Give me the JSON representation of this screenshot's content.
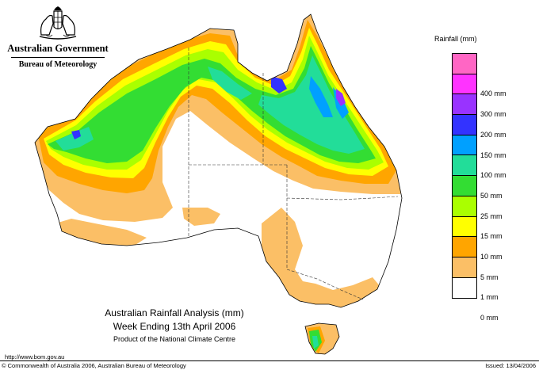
{
  "branding": {
    "government": "Australian Government",
    "bureau": "Bureau of Meteorology"
  },
  "legend": {
    "title": "Rainfall (mm)",
    "items": [
      {
        "label": "",
        "color": "#ff66c4"
      },
      {
        "label": "400 mm",
        "color": "#ff33ff"
      },
      {
        "label": "300 mm",
        "color": "#9933ff"
      },
      {
        "label": "200 mm",
        "color": "#3333ff"
      },
      {
        "label": "150 mm",
        "color": "#00a0ff"
      },
      {
        "label": "100 mm",
        "color": "#22dd99"
      },
      {
        "label": "50 mm",
        "color": "#33dd33"
      },
      {
        "label": "25 mm",
        "color": "#aaff00"
      },
      {
        "label": "15 mm",
        "color": "#ffff00"
      },
      {
        "label": "10 mm",
        "color": "#ffa500"
      },
      {
        "label": "5 mm",
        "color": "#fbbf66"
      },
      {
        "label": "1 mm",
        "color": "#ffffff"
      },
      {
        "label": "0 mm",
        "color": ""
      }
    ]
  },
  "map_title": {
    "line1": "Australian Rainfall Analysis (mm)",
    "line2": "Week Ending 13th April 2006",
    "line3": "Product of the National Climate Centre"
  },
  "footer": {
    "url": "http://www.bom.gov.au",
    "copyright": "© Commonwealth of Australia 2006, Australian Bureau of Meteorology",
    "issued": "Issued: 13/04/2006"
  },
  "colors": {
    "c1mm": "#fbbf66",
    "c5mm": "#ffa500",
    "c10mm": "#ffff00",
    "c15mm": "#aaff00",
    "c25mm": "#33dd33",
    "c50mm": "#22dd99",
    "c100mm": "#00a0ff",
    "c150mm": "#3333ff",
    "c200mm": "#9933ff"
  }
}
